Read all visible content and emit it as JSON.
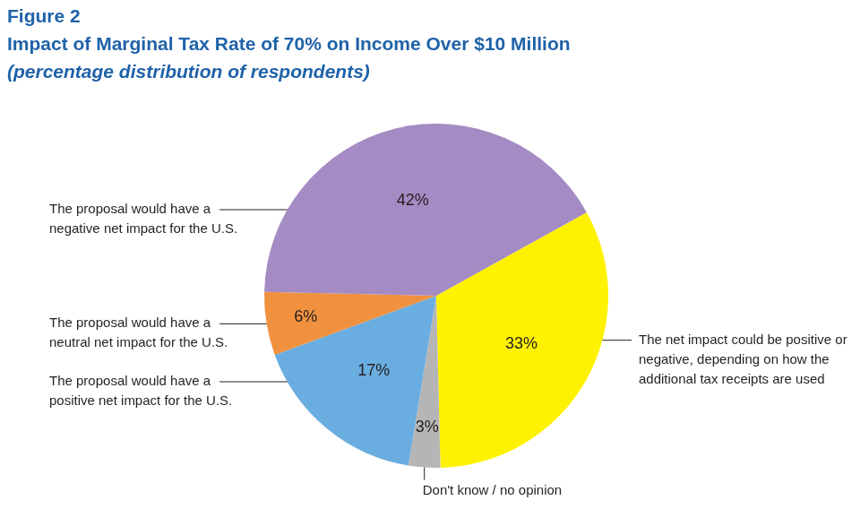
{
  "chart_data": {
    "type": "pie",
    "title": "Figure 2",
    "subtitle": [
      "Impact of Marginal Tax Rate of 70% on Income Over $10 Million",
      "(percentage distribution of respondents)"
    ],
    "categories": [
      "The net impact could be positive or negative, depending on how the additional tax receipts are used",
      "Don't know / no opinion",
      "The proposal would have a positive net impact for the U.S.",
      "The proposal would have a neutral net impact for the U.S.",
      "The proposal would have a negative net impact for the U.S."
    ],
    "values": [
      33,
      3,
      17,
      6,
      42
    ],
    "value_labels": [
      "33%",
      "3%",
      "17%",
      "6%",
      "42%"
    ],
    "colors": [
      "#fff200",
      "#b5b5b5",
      "#6aade0",
      "#f0913f",
      "#a58bc4"
    ],
    "data_labels": true
  }
}
